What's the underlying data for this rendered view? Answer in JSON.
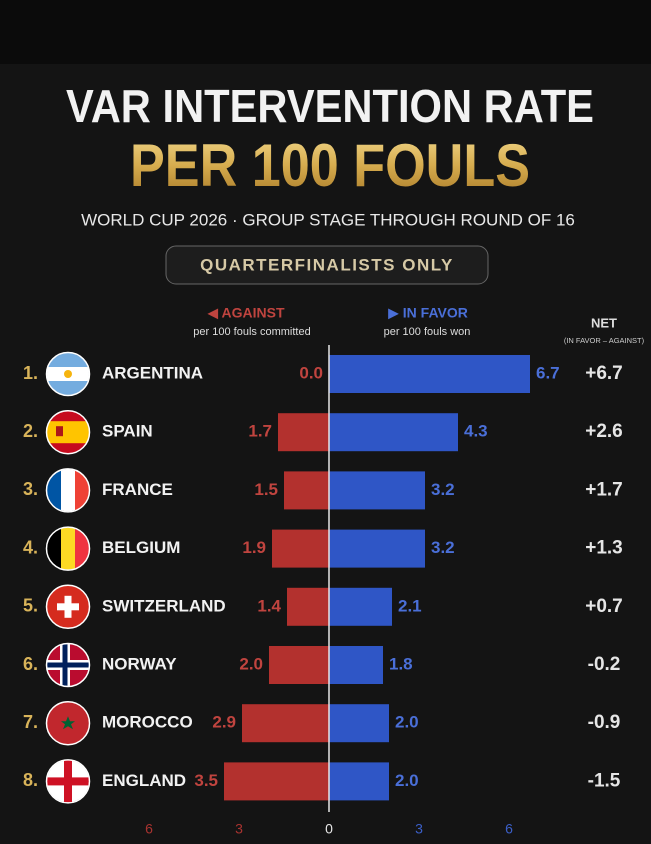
{
  "chart_data": {
    "type": "diverging_bar",
    "title": "VAR INTERVENTION RATE",
    "title_highlight": "PER 100 FOULS",
    "subtitle": "WORLD CUP 2026 · GROUP STAGE THROUGH ROUND OF 16",
    "badge": "QUARTERFINALISTS ONLY",
    "ranks": [
      "1.",
      "2.",
      "3.",
      "4.",
      "5.",
      "6.",
      "7.",
      "8."
    ],
    "categories": [
      "ARGENTINA",
      "SPAIN",
      "FRANCE",
      "BELGIUM",
      "SWITZERLAND",
      "NORWAY",
      "MOROCCO",
      "ENGLAND"
    ],
    "series": [
      {
        "name": "◀ AGAINST",
        "sublabel": "per 100 fouls committed",
        "color": "#b3312e",
        "label_color": "#c0443f",
        "direction": "left",
        "values": [
          0,
          1.7,
          1.5,
          1.9,
          1.4,
          2,
          2.9,
          3.5
        ],
        "value_labels": [
          "0.0",
          "1.7",
          "1.5",
          "1.9",
          "1.4",
          "2.0",
          "2.9",
          "3.5"
        ]
      },
      {
        "name": "▶ IN FAVOR",
        "sublabel": "per 100 fouls won",
        "color": "#2f56c6",
        "label_color": "#4a6fd8",
        "direction": "right",
        "values": [
          6.7,
          4.3,
          3.2,
          3.2,
          2.1,
          1.8,
          2,
          2
        ],
        "value_labels": [
          "6.7",
          "4.3",
          "3.2",
          "3.2",
          "2.1",
          "1.8",
          "2.0",
          "2.0"
        ]
      }
    ],
    "net": {
      "name": "NET",
      "sublabel": "(IN FAVOR – AGAINST)",
      "values": [
        6.7,
        2.6,
        1.7,
        1.3,
        0.7,
        -0.2,
        -0.9,
        -1.5
      ],
      "value_labels": [
        "+6.7",
        "+2.6",
        "+1.7",
        "+1.3",
        "+0.7",
        "-0.2",
        "-0.9",
        "-1.5"
      ]
    },
    "xlim": [
      -7,
      7
    ],
    "xticks": [
      {
        "value": -6,
        "label": "6"
      },
      {
        "value": -3,
        "label": "3"
      },
      0,
      3,
      6
    ]
  }
}
